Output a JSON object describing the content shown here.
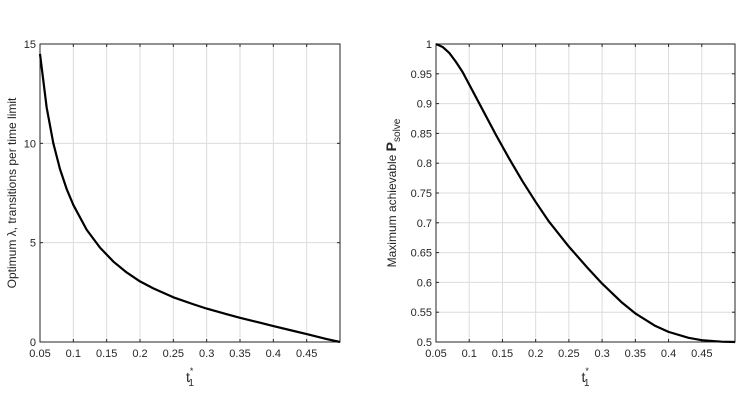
{
  "chart_data": [
    {
      "type": "line",
      "xlabel": "t",
      "xlabel_sup": "*",
      "xlabel_sub": "1",
      "ylabel": "Optimum λ, transitions per time limit",
      "xlim": [
        0.05,
        0.5
      ],
      "ylim": [
        0,
        15
      ],
      "x_ticks": [
        "0.05",
        "0.1",
        "0.15",
        "0.2",
        "0.25",
        "0.3",
        "0.35",
        "0.4",
        "0.45"
      ],
      "x_tick_values": [
        0.05,
        0.1,
        0.15,
        0.2,
        0.25,
        0.3,
        0.35,
        0.4,
        0.45
      ],
      "y_ticks": [
        "0",
        "5",
        "10",
        "15"
      ],
      "y_tick_values": [
        0,
        5,
        10,
        15
      ],
      "grid": true,
      "series": [
        {
          "color": "#000000",
          "x": [
            0.05,
            0.06,
            0.07,
            0.08,
            0.09,
            0.1,
            0.12,
            0.14,
            0.16,
            0.18,
            0.2,
            0.22,
            0.25,
            0.28,
            0.3,
            0.33,
            0.35,
            0.38,
            0.4,
            0.43,
            0.45,
            0.48,
            0.5
          ],
          "y": [
            14.5,
            11.8,
            10.0,
            8.7,
            7.7,
            6.9,
            5.65,
            4.75,
            4.05,
            3.5,
            3.05,
            2.7,
            2.25,
            1.9,
            1.68,
            1.4,
            1.22,
            0.97,
            0.8,
            0.56,
            0.4,
            0.15,
            0.0
          ]
        }
      ]
    },
    {
      "type": "line",
      "xlabel": "t",
      "xlabel_sup": "*",
      "xlabel_sub": "1",
      "ylabel": "Maximum achievable P",
      "ylabel_sub": "solve",
      "xlim": [
        0.05,
        0.5
      ],
      "ylim": [
        0.5,
        1
      ],
      "x_ticks": [
        "0.05",
        "0.1",
        "0.15",
        "0.2",
        "0.25",
        "0.3",
        "0.35",
        "0.4",
        "0.45"
      ],
      "x_tick_values": [
        0.05,
        0.1,
        0.15,
        0.2,
        0.25,
        0.3,
        0.35,
        0.4,
        0.45
      ],
      "y_ticks": [
        "0.5",
        "0.55",
        "0.6",
        "0.65",
        "0.7",
        "0.75",
        "0.8",
        "0.85",
        "0.9",
        "0.95",
        "1"
      ],
      "y_tick_values": [
        0.5,
        0.55,
        0.6,
        0.65,
        0.7,
        0.75,
        0.8,
        0.85,
        0.9,
        0.95,
        1.0
      ],
      "grid": true,
      "series": [
        {
          "color": "#000000",
          "x": [
            0.05,
            0.06,
            0.07,
            0.08,
            0.09,
            0.1,
            0.12,
            0.14,
            0.16,
            0.18,
            0.2,
            0.22,
            0.25,
            0.28,
            0.3,
            0.33,
            0.35,
            0.38,
            0.4,
            0.43,
            0.45,
            0.48,
            0.5
          ],
          "y": [
            1.0,
            0.995,
            0.985,
            0.97,
            0.953,
            0.932,
            0.89,
            0.848,
            0.808,
            0.77,
            0.735,
            0.702,
            0.66,
            0.622,
            0.598,
            0.566,
            0.548,
            0.527,
            0.517,
            0.507,
            0.503,
            0.5005,
            0.5
          ]
        }
      ]
    }
  ]
}
